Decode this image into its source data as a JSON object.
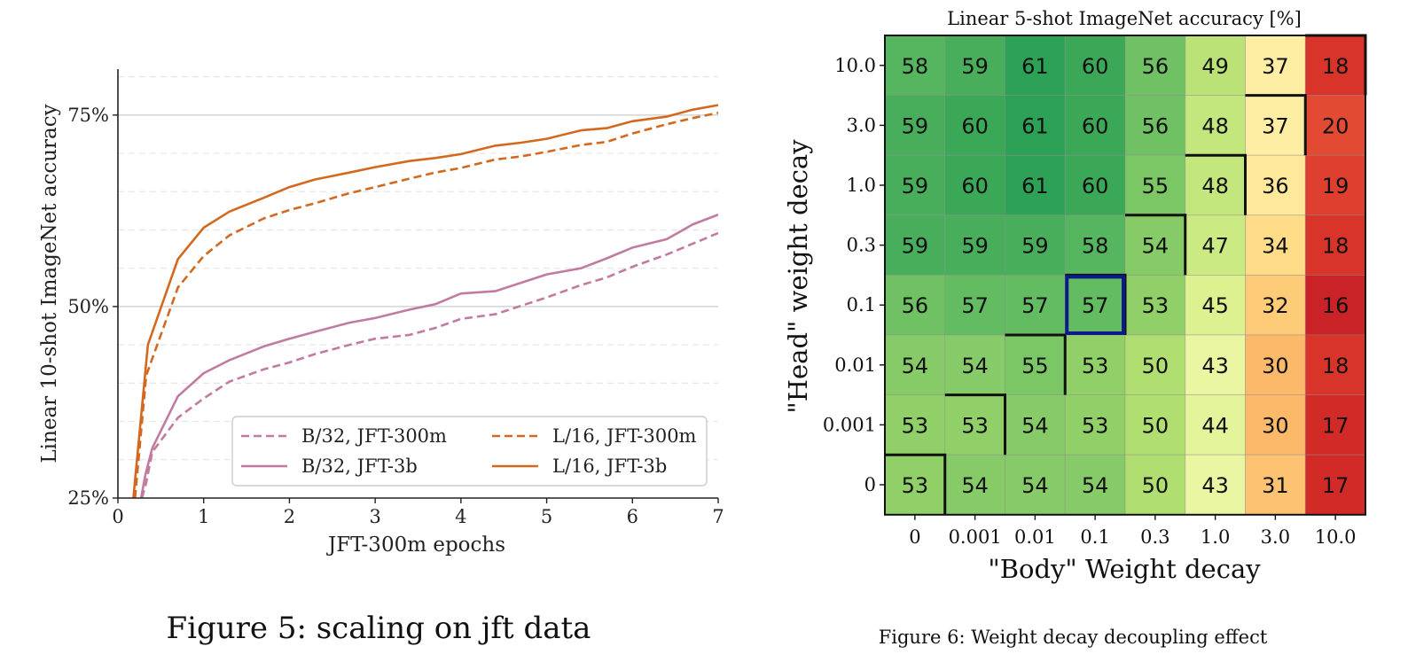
{
  "chart_data": [
    {
      "type": "line",
      "title": "",
      "xlabel": "JFT-300m epochs",
      "ylabel": "Linear 10-shot ImageNet accuracy",
      "xlim": [
        0,
        7
      ],
      "ylim": [
        25,
        81
      ],
      "x_ticks": [
        0,
        1,
        2,
        3,
        4,
        5,
        6,
        7
      ],
      "x_tick_labels": [
        "0",
        "1",
        "2",
        "3",
        "4",
        "5",
        "6",
        "7"
      ],
      "y_ticks": [
        25,
        50,
        75
      ],
      "y_tick_labels": [
        "25%",
        "50%",
        "75%"
      ],
      "grid": "major solid, minor dashed (y)",
      "legend_placement": "lower-right",
      "caption": "Figure 5: scaling on jft data",
      "series": [
        {
          "name": "B/32, JFT-300m",
          "style": "dashed",
          "color": "#c27ba0",
          "x": [
            0.28,
            0.33,
            0.4,
            0.7,
            1.0,
            1.3,
            1.7,
            2.0,
            2.3,
            2.7,
            3.0,
            3.4,
            3.7,
            4.0,
            4.4,
            4.7,
            5.0,
            5.4,
            5.7,
            6.0,
            6.4,
            6.7,
            7.0
          ],
          "y": [
            25,
            27,
            31,
            35.5,
            38,
            40.2,
            41.8,
            42.7,
            43.8,
            45,
            45.8,
            46.3,
            47.2,
            48.4,
            49,
            50.1,
            51.2,
            52.8,
            53.8,
            55.2,
            56.8,
            58.2,
            59.6
          ]
        },
        {
          "name": "B/32, JFT-3b",
          "style": "solid",
          "color": "#c27ba0",
          "x": [
            0.27,
            0.32,
            0.4,
            0.7,
            1.0,
            1.3,
            1.7,
            2.0,
            2.3,
            2.7,
            3.0,
            3.4,
            3.7,
            4.0,
            4.4,
            4.7,
            5.0,
            5.4,
            5.7,
            6.0,
            6.4,
            6.7,
            7.0
          ],
          "y": [
            25,
            28,
            31.5,
            38.3,
            41.3,
            43,
            44.8,
            45.8,
            46.7,
            47.9,
            48.5,
            49.6,
            50.3,
            51.7,
            52,
            53.1,
            54.2,
            55,
            56.3,
            57.7,
            58.8,
            60.7,
            62
          ]
        },
        {
          "name": "L/16, JFT-300m",
          "style": "dashed",
          "color": "#d2691e",
          "x": [
            0.2,
            0.33,
            0.7,
            1.0,
            1.3,
            1.7,
            2.0,
            2.3,
            2.7,
            3.0,
            3.4,
            3.7,
            4.0,
            4.4,
            4.7,
            5.0,
            5.4,
            5.7,
            6.0,
            6.4,
            6.7,
            7.0
          ],
          "y": [
            25,
            41,
            52.5,
            56.6,
            59.3,
            61.5,
            62.6,
            63.5,
            64.8,
            65.6,
            66.7,
            67.5,
            68.1,
            69.2,
            69.6,
            70.2,
            71.1,
            71.5,
            72.6,
            73.8,
            74.6,
            75.3
          ]
        },
        {
          "name": "L/16, JFT-3b",
          "style": "solid",
          "color": "#d2691e",
          "x": [
            0.18,
            0.35,
            0.7,
            1.0,
            1.3,
            1.7,
            2.0,
            2.3,
            2.7,
            3.0,
            3.4,
            3.7,
            4.0,
            4.4,
            4.7,
            5.0,
            5.4,
            5.7,
            6.0,
            6.4,
            6.7,
            7.0
          ],
          "y": [
            25,
            45,
            56.2,
            60.3,
            62.4,
            64.2,
            65.6,
            66.6,
            67.5,
            68.2,
            69,
            69.4,
            69.9,
            71,
            71.4,
            71.9,
            73,
            73.3,
            74.2,
            74.8,
            75.7,
            76.3
          ]
        }
      ]
    },
    {
      "type": "heatmap",
      "title": "Linear 5-shot ImageNet accuracy [%]",
      "xlabel": "\"Body\" Weight decay",
      "ylabel": "\"Head\" weight decay",
      "x_labels": [
        "0",
        "0.001",
        "0.01",
        "0.1",
        "0.3",
        "1.0",
        "3.0",
        "10.0"
      ],
      "y_labels": [
        "10.0",
        "3.0",
        "1.0",
        "0.3",
        "0.1",
        "0.01",
        "0.001",
        "0"
      ],
      "values": [
        [
          58,
          59,
          61,
          60,
          56,
          49,
          37,
          18
        ],
        [
          59,
          60,
          61,
          60,
          56,
          48,
          37,
          20
        ],
        [
          59,
          60,
          61,
          60,
          55,
          48,
          36,
          19
        ],
        [
          59,
          59,
          59,
          58,
          54,
          47,
          34,
          18
        ],
        [
          56,
          57,
          57,
          57,
          53,
          45,
          32,
          16
        ],
        [
          54,
          54,
          55,
          53,
          50,
          43,
          30,
          18
        ],
        [
          53,
          53,
          54,
          53,
          50,
          44,
          30,
          17
        ],
        [
          53,
          54,
          54,
          54,
          50,
          43,
          31,
          17
        ]
      ],
      "highlight_cell": {
        "row": 4,
        "col": 3,
        "color": "#0a1a8c"
      },
      "colormap": "RdYlGn",
      "caption": "Figure 6: Weight decay decoupling effect"
    }
  ]
}
